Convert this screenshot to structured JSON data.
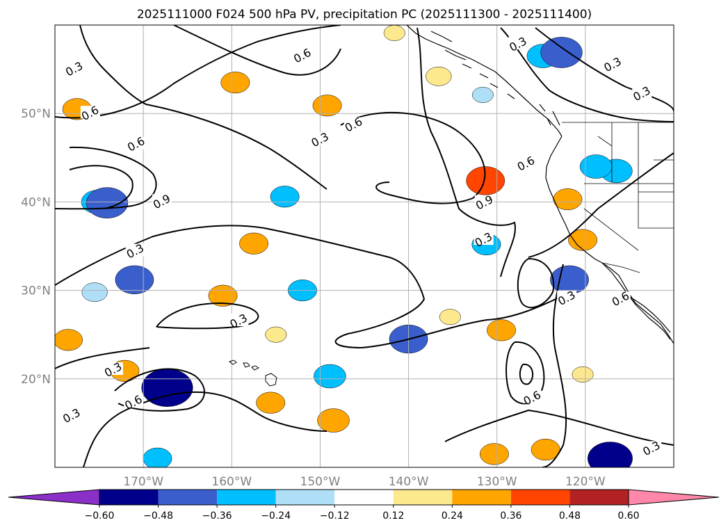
{
  "chart_data": {
    "type": "contour-map",
    "title": "2025111000 F024 500 hPa PV, precipitation PC (2025111300 - 2025111400)",
    "x_range": [
      -180,
      -110
    ],
    "y_range": [
      10,
      60
    ],
    "lon_ticks": [
      -170,
      -160,
      -150,
      -140,
      -130,
      -120
    ],
    "lon_tick_labels": [
      "170°W",
      "160°W",
      "150°W",
      "140°W",
      "130°W",
      "120°W"
    ],
    "lat_ticks": [
      20,
      30,
      40,
      50
    ],
    "lat_tick_labels": [
      "20°N",
      "30°N",
      "40°N",
      "50°N"
    ],
    "grid": true,
    "colorbar": {
      "levels": [
        -0.6,
        -0.48,
        -0.36,
        -0.24,
        -0.12,
        0.12,
        0.24,
        0.36,
        0.48,
        0.6
      ],
      "tick_labels": [
        "−0.60",
        "−0.48",
        "−0.36",
        "−0.24",
        "−0.12",
        "0.12",
        "0.24",
        "0.36",
        "0.48",
        "0.60"
      ],
      "colors": [
        "#8b2fc9",
        "#00008b",
        "#3a5fcd",
        "#00bfff",
        "#afdff7",
        "#ffffff",
        "#fde98d",
        "#ffa500",
        "#ff4500",
        "#b22222",
        "#ff88aa"
      ],
      "extend": "both"
    },
    "pv_contour_levels": [
      0.3,
      0.6,
      0.9
    ],
    "pv_contour_labels": [
      {
        "text": "0.3",
        "lon": -177.8,
        "lat": 55.0
      },
      {
        "text": "0.6",
        "lon": -176.0,
        "lat": 50.0
      },
      {
        "text": "0.6",
        "lon": -170.8,
        "lat": 46.5
      },
      {
        "text": "0.9",
        "lon": -167.9,
        "lat": 40.0
      },
      {
        "text": "0.3",
        "lon": -170.9,
        "lat": 34.4
      },
      {
        "text": "0.6",
        "lon": -152.0,
        "lat": 56.5
      },
      {
        "text": "0.6",
        "lon": -146.2,
        "lat": 48.7
      },
      {
        "text": "0.3",
        "lon": -150.0,
        "lat": 47.0
      },
      {
        "text": "0.3",
        "lon": -127.6,
        "lat": 57.8
      },
      {
        "text": "0.3",
        "lon": -116.9,
        "lat": 55.5
      },
      {
        "text": "0.3",
        "lon": -113.6,
        "lat": 52.2
      },
      {
        "text": "0.6",
        "lon": -126.7,
        "lat": 44.3
      },
      {
        "text": "0.9",
        "lon": -131.4,
        "lat": 39.9
      },
      {
        "text": "0.3",
        "lon": -131.5,
        "lat": 35.7
      },
      {
        "text": "0.6",
        "lon": -116.0,
        "lat": 29.0
      },
      {
        "text": "0.3",
        "lon": -122.1,
        "lat": 29.1
      },
      {
        "text": "0.3",
        "lon": -159.2,
        "lat": 26.5
      },
      {
        "text": "0.3",
        "lon": -173.4,
        "lat": 21.0
      },
      {
        "text": "0.6",
        "lon": -171.1,
        "lat": 17.3
      },
      {
        "text": "0.3",
        "lon": -178.1,
        "lat": 15.8
      },
      {
        "text": "0.6",
        "lon": -126.0,
        "lat": 17.8
      },
      {
        "text": "0.3",
        "lon": -112.5,
        "lat": 12.1
      }
    ],
    "precipitation_anomaly_blobs": [
      {
        "lon": -131.3,
        "lat": 42.4,
        "value": 0.4
      },
      {
        "lon": -177.5,
        "lat": 50.5,
        "value": 0.25
      },
      {
        "lon": -159.6,
        "lat": 53.5,
        "value": 0.25
      },
      {
        "lon": -149.2,
        "lat": 50.9,
        "value": 0.25
      },
      {
        "lon": -157.5,
        "lat": 35.3,
        "value": 0.25
      },
      {
        "lon": -161.0,
        "lat": 29.4,
        "value": 0.25
      },
      {
        "lon": -178.5,
        "lat": 24.4,
        "value": 0.25
      },
      {
        "lon": -172.1,
        "lat": 20.9,
        "value": 0.25
      },
      {
        "lon": -155.6,
        "lat": 17.3,
        "value": 0.25
      },
      {
        "lon": -148.5,
        "lat": 15.3,
        "value": 0.3
      },
      {
        "lon": -141.6,
        "lat": 59.1,
        "value": 0.13
      },
      {
        "lon": -136.6,
        "lat": 54.2,
        "value": 0.2
      },
      {
        "lon": -122.0,
        "lat": 40.3,
        "value": 0.25
      },
      {
        "lon": -120.3,
        "lat": 35.7,
        "value": 0.25
      },
      {
        "lon": -129.5,
        "lat": 25.5,
        "value": 0.25
      },
      {
        "lon": -124.5,
        "lat": 12.0,
        "value": 0.25
      },
      {
        "lon": -130.3,
        "lat": 11.5,
        "value": 0.25
      },
      {
        "lon": -120.3,
        "lat": 20.5,
        "value": 0.13
      },
      {
        "lon": -135.3,
        "lat": 27.0,
        "value": 0.13
      },
      {
        "lon": -155.0,
        "lat": 25.0,
        "value": 0.13
      },
      {
        "lon": -124.8,
        "lat": 56.5,
        "value": -0.3
      },
      {
        "lon": -122.7,
        "lat": 56.9,
        "value": -0.45
      },
      {
        "lon": -175.2,
        "lat": 40.0,
        "value": -0.3
      },
      {
        "lon": -174.1,
        "lat": 39.9,
        "value": -0.45
      },
      {
        "lon": -175.5,
        "lat": 29.8,
        "value": -0.2
      },
      {
        "lon": -171.0,
        "lat": 31.2,
        "value": -0.4
      },
      {
        "lon": -167.1,
        "lat": 18.8,
        "value": -0.45
      },
      {
        "lon": -167.3,
        "lat": 19.0,
        "value": -0.6
      },
      {
        "lon": -140.0,
        "lat": 24.5,
        "value": -0.4
      },
      {
        "lon": -121.8,
        "lat": 31.2,
        "value": -0.4
      },
      {
        "lon": -116.5,
        "lat": 43.5,
        "value": -0.3
      },
      {
        "lon": -118.8,
        "lat": 44.0,
        "value": -0.3
      },
      {
        "lon": -154.0,
        "lat": 40.6,
        "value": -0.25
      },
      {
        "lon": -152.0,
        "lat": 30.0,
        "value": -0.25
      },
      {
        "lon": -148.9,
        "lat": 20.3,
        "value": -0.3
      },
      {
        "lon": -131.2,
        "lat": 35.2,
        "value": -0.25
      },
      {
        "lon": -117.4,
        "lat": 11.2,
        "value": -0.3
      },
      {
        "lon": -117.2,
        "lat": 11.0,
        "value": -0.5
      },
      {
        "lon": -168.4,
        "lat": 11.0,
        "value": -0.25
      },
      {
        "lon": -131.6,
        "lat": 52.1,
        "value": -0.13
      }
    ]
  }
}
